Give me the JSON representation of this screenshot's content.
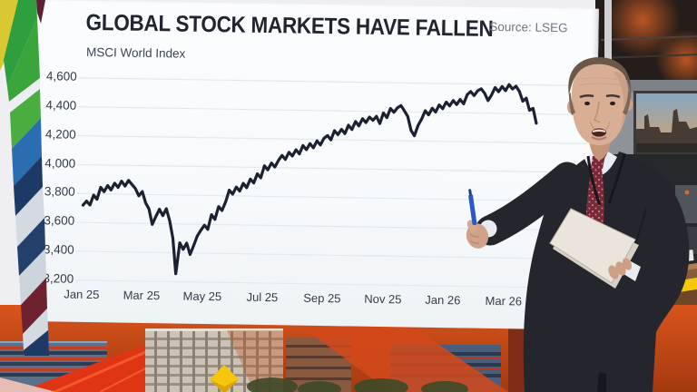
{
  "chart_data": {
    "type": "line",
    "title": "GLOBAL STOCK MARKETS HAVE FALLEN",
    "subtitle": "MSCI World Index",
    "source": "Source: LSEG",
    "x_tick_labels": [
      "Jan 25",
      "Mar 25",
      "May 25",
      "Jul 25",
      "Sep 25",
      "Nov 25",
      "Jan 26",
      "Mar 26"
    ],
    "y_tick_values": [
      4600,
      4400,
      4200,
      4000,
      3800,
      3600,
      3400,
      3200
    ],
    "y_tick_labels": [
      "4,600",
      "4,400",
      "4,200",
      "4,000",
      "3,800",
      "3,600",
      "3,400",
      "3,200"
    ],
    "ylim": [
      3150,
      4680
    ],
    "grid": true,
    "legend": "none",
    "line_color": "#1b2130",
    "values": [
      3720,
      3748,
      3722,
      3790,
      3762,
      3845,
      3815,
      3858,
      3828,
      3875,
      3846,
      3890,
      3856,
      3896,
      3868,
      3840,
      3790,
      3820,
      3742,
      3700,
      3594,
      3648,
      3700,
      3656,
      3704,
      3620,
      3500,
      3255,
      3470,
      3425,
      3468,
      3390,
      3452,
      3518,
      3558,
      3594,
      3566,
      3668,
      3636,
      3724,
      3698,
      3758,
      3840,
      3812,
      3862,
      3834,
      3888,
      3858,
      3918,
      3892,
      3955,
      3928,
      4012,
      3984,
      4032,
      4004,
      4050,
      4085,
      4058,
      4108,
      4082,
      4126,
      4098,
      4156,
      4128,
      4170,
      4142,
      4190,
      4162,
      4208,
      4228,
      4198,
      4262,
      4235,
      4272,
      4243,
      4302,
      4272,
      4328,
      4298,
      4348,
      4322,
      4360,
      4338,
      4366,
      4316,
      4390,
      4358,
      4422,
      4396,
      4428,
      4443,
      4408,
      4368,
      4273,
      4236,
      4308,
      4352,
      4410,
      4382,
      4428,
      4402,
      4452,
      4426,
      4472,
      4446,
      4484,
      4456,
      4492,
      4462,
      4526,
      4548,
      4520,
      4554,
      4568,
      4538,
      4487,
      4526,
      4578,
      4550,
      4586,
      4558,
      4600,
      4570,
      4590,
      4554,
      4487,
      4508,
      4424,
      4438,
      4336
    ]
  },
  "colors": {
    "board_bg": "#fbfcfd",
    "gridline": "#e3e8ee",
    "wall_orange": "#d9541b",
    "diamond_yellow": "#f6c50d",
    "suit": "#24252d",
    "tie": "#7b2836",
    "pen_blue": "#2b57c8"
  }
}
